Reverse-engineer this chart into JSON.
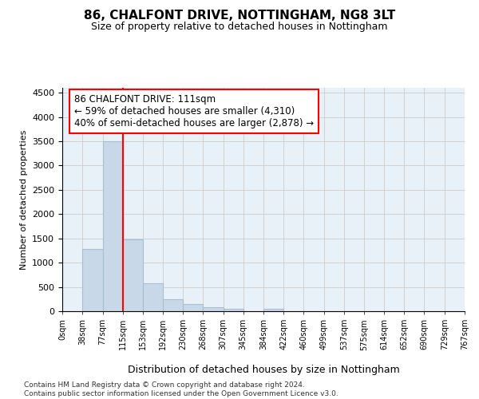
{
  "title": "86, CHALFONT DRIVE, NOTTINGHAM, NG8 3LT",
  "subtitle": "Size of property relative to detached houses in Nottingham",
  "xlabel": "Distribution of detached houses by size in Nottingham",
  "ylabel": "Number of detached properties",
  "bin_edges": [
    0,
    38,
    77,
    115,
    153,
    192,
    230,
    268,
    307,
    345,
    384,
    422,
    460,
    499,
    537,
    575,
    614,
    652,
    690,
    729,
    767
  ],
  "bar_heights": [
    0,
    1280,
    3500,
    1480,
    575,
    250,
    150,
    75,
    50,
    0,
    50,
    0,
    0,
    0,
    0,
    0,
    0,
    0,
    0,
    0
  ],
  "bar_color": "#c8d8e8",
  "bar_edge_color": "#a8bfd0",
  "bar_linewidth": 0.8,
  "grid_color": "#cccccc",
  "background_color": "#e8f0f8",
  "red_line_x": 115,
  "annotation_text": "86 CHALFONT DRIVE: 111sqm\n← 59% of detached houses are smaller (4,310)\n40% of semi-detached houses are larger (2,878) →",
  "ylim": [
    0,
    4600
  ],
  "yticks": [
    0,
    500,
    1000,
    1500,
    2000,
    2500,
    3000,
    3500,
    4000,
    4500
  ],
  "footer_line1": "Contains HM Land Registry data © Crown copyright and database right 2024.",
  "footer_line2": "Contains public sector information licensed under the Open Government Licence v3.0.",
  "tick_labels": [
    "0sqm",
    "38sqm",
    "77sqm",
    "115sqm",
    "153sqm",
    "192sqm",
    "230sqm",
    "268sqm",
    "307sqm",
    "345sqm",
    "384sqm",
    "422sqm",
    "460sqm",
    "499sqm",
    "537sqm",
    "575sqm",
    "614sqm",
    "652sqm",
    "690sqm",
    "729sqm",
    "767sqm"
  ]
}
